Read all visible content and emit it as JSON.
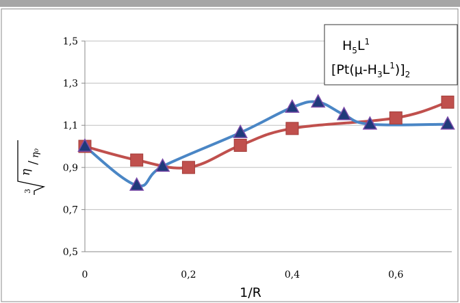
{
  "chart_data": {
    "type": "line",
    "xlabel": "1/R",
    "ylabel": "∛(η/η₀)",
    "xlim": [
      0,
      0.7
    ],
    "ylim": [
      0.5,
      1.5
    ],
    "x_ticks": [
      "0",
      "0,2",
      "0,4",
      "0,6"
    ],
    "y_ticks": [
      "0,5",
      "0,7",
      "0,9",
      "1,1",
      "1,3",
      "1,5"
    ],
    "grid": "horizontal",
    "legend_position": "top-right",
    "series": [
      {
        "name": "H5L1",
        "legend_parts": {
          "a": "H",
          "b": "5",
          "c": "L",
          "d": "1"
        },
        "color": "#4a86c5",
        "marker": "triangle",
        "marker_color": "#1f3a7a",
        "marker_stroke": "#7a4aa8",
        "x": [
          0,
          0.1,
          0.15,
          0.3,
          0.4,
          0.45,
          0.5,
          0.55,
          0.7
        ],
        "y": [
          1.0,
          0.815,
          0.905,
          1.065,
          1.185,
          1.21,
          1.15,
          1.105,
          1.105
        ]
      },
      {
        "name": "[Pt(μ-H3L1)]2",
        "legend_parts": {
          "a": "[Pt(μ-H",
          "b": "3",
          "c": "L",
          "d": "1",
          "e": ")]",
          "f": "2"
        },
        "color": "#c0504d",
        "marker": "square",
        "marker_color": "#c0504d",
        "x": [
          0,
          0.1,
          0.2,
          0.3,
          0.4,
          0.6,
          0.7
        ],
        "y": [
          1.0,
          0.935,
          0.9,
          1.005,
          1.085,
          1.135,
          1.21
        ]
      }
    ]
  },
  "colors": {
    "axis": "#888888",
    "grid": "#bfbfbf",
    "frame": "#888888"
  }
}
